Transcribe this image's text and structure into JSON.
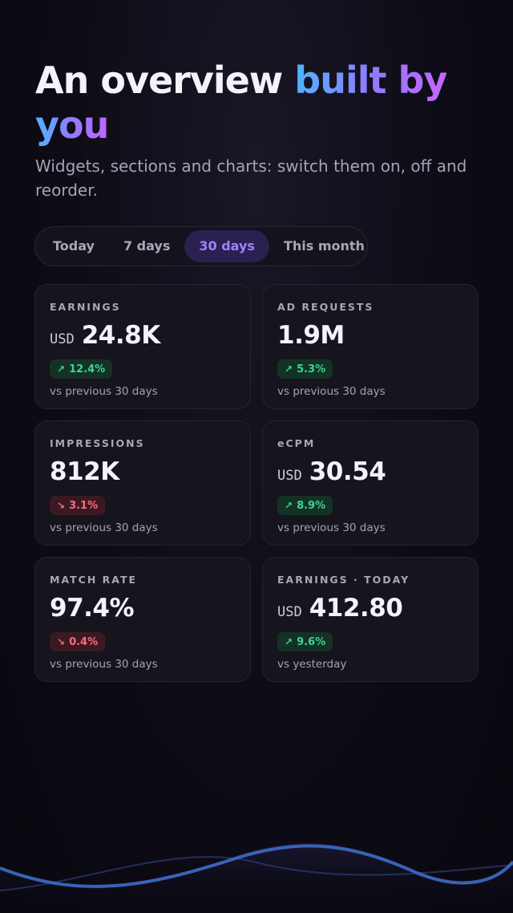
{
  "hero": {
    "title_plain": "An overview ",
    "title_highlight_a": "built by",
    "title_highlight_b": "you",
    "subtitle": "Widgets, sections and charts: switch them on, off and reorder."
  },
  "tabs": [
    {
      "label": "Today",
      "active": false
    },
    {
      "label": "7 days",
      "active": false
    },
    {
      "label": "30 days",
      "active": true
    },
    {
      "label": "This month",
      "active": false
    }
  ],
  "cards": [
    {
      "label": "EARNINGS",
      "currency": "USD",
      "value": "24.8K",
      "change": "12.4%",
      "direction": "up",
      "arrow": "↗",
      "compare": "vs previous 30 days"
    },
    {
      "label": "AD REQUESTS",
      "currency": "",
      "value": "1.9M",
      "change": "5.3%",
      "direction": "up",
      "arrow": "↗",
      "compare": "vs previous 30 days"
    },
    {
      "label": "IMPRESSIONS",
      "currency": "",
      "value": "812K",
      "change": "3.1%",
      "direction": "down",
      "arrow": "↘",
      "compare": "vs previous 30 days"
    },
    {
      "label": "eCPM",
      "currency": "USD",
      "value": "30.54",
      "change": "8.9%",
      "direction": "up",
      "arrow": "↗",
      "compare": "vs previous 30 days"
    },
    {
      "label": "MATCH RATE",
      "currency": "",
      "value": "97.4%",
      "change": "0.4%",
      "direction": "down",
      "arrow": "↘",
      "compare": "vs previous 30 days"
    },
    {
      "label": "EARNINGS · TODAY",
      "currency": "USD",
      "value": "412.80",
      "change": "9.6%",
      "direction": "up",
      "arrow": "↗",
      "compare": "vs yesterday"
    }
  ],
  "colors": {
    "accent": "#9d83ff",
    "positive": "#3bd68f",
    "negative": "#ff6b7a",
    "wave": "#3a62b8"
  }
}
